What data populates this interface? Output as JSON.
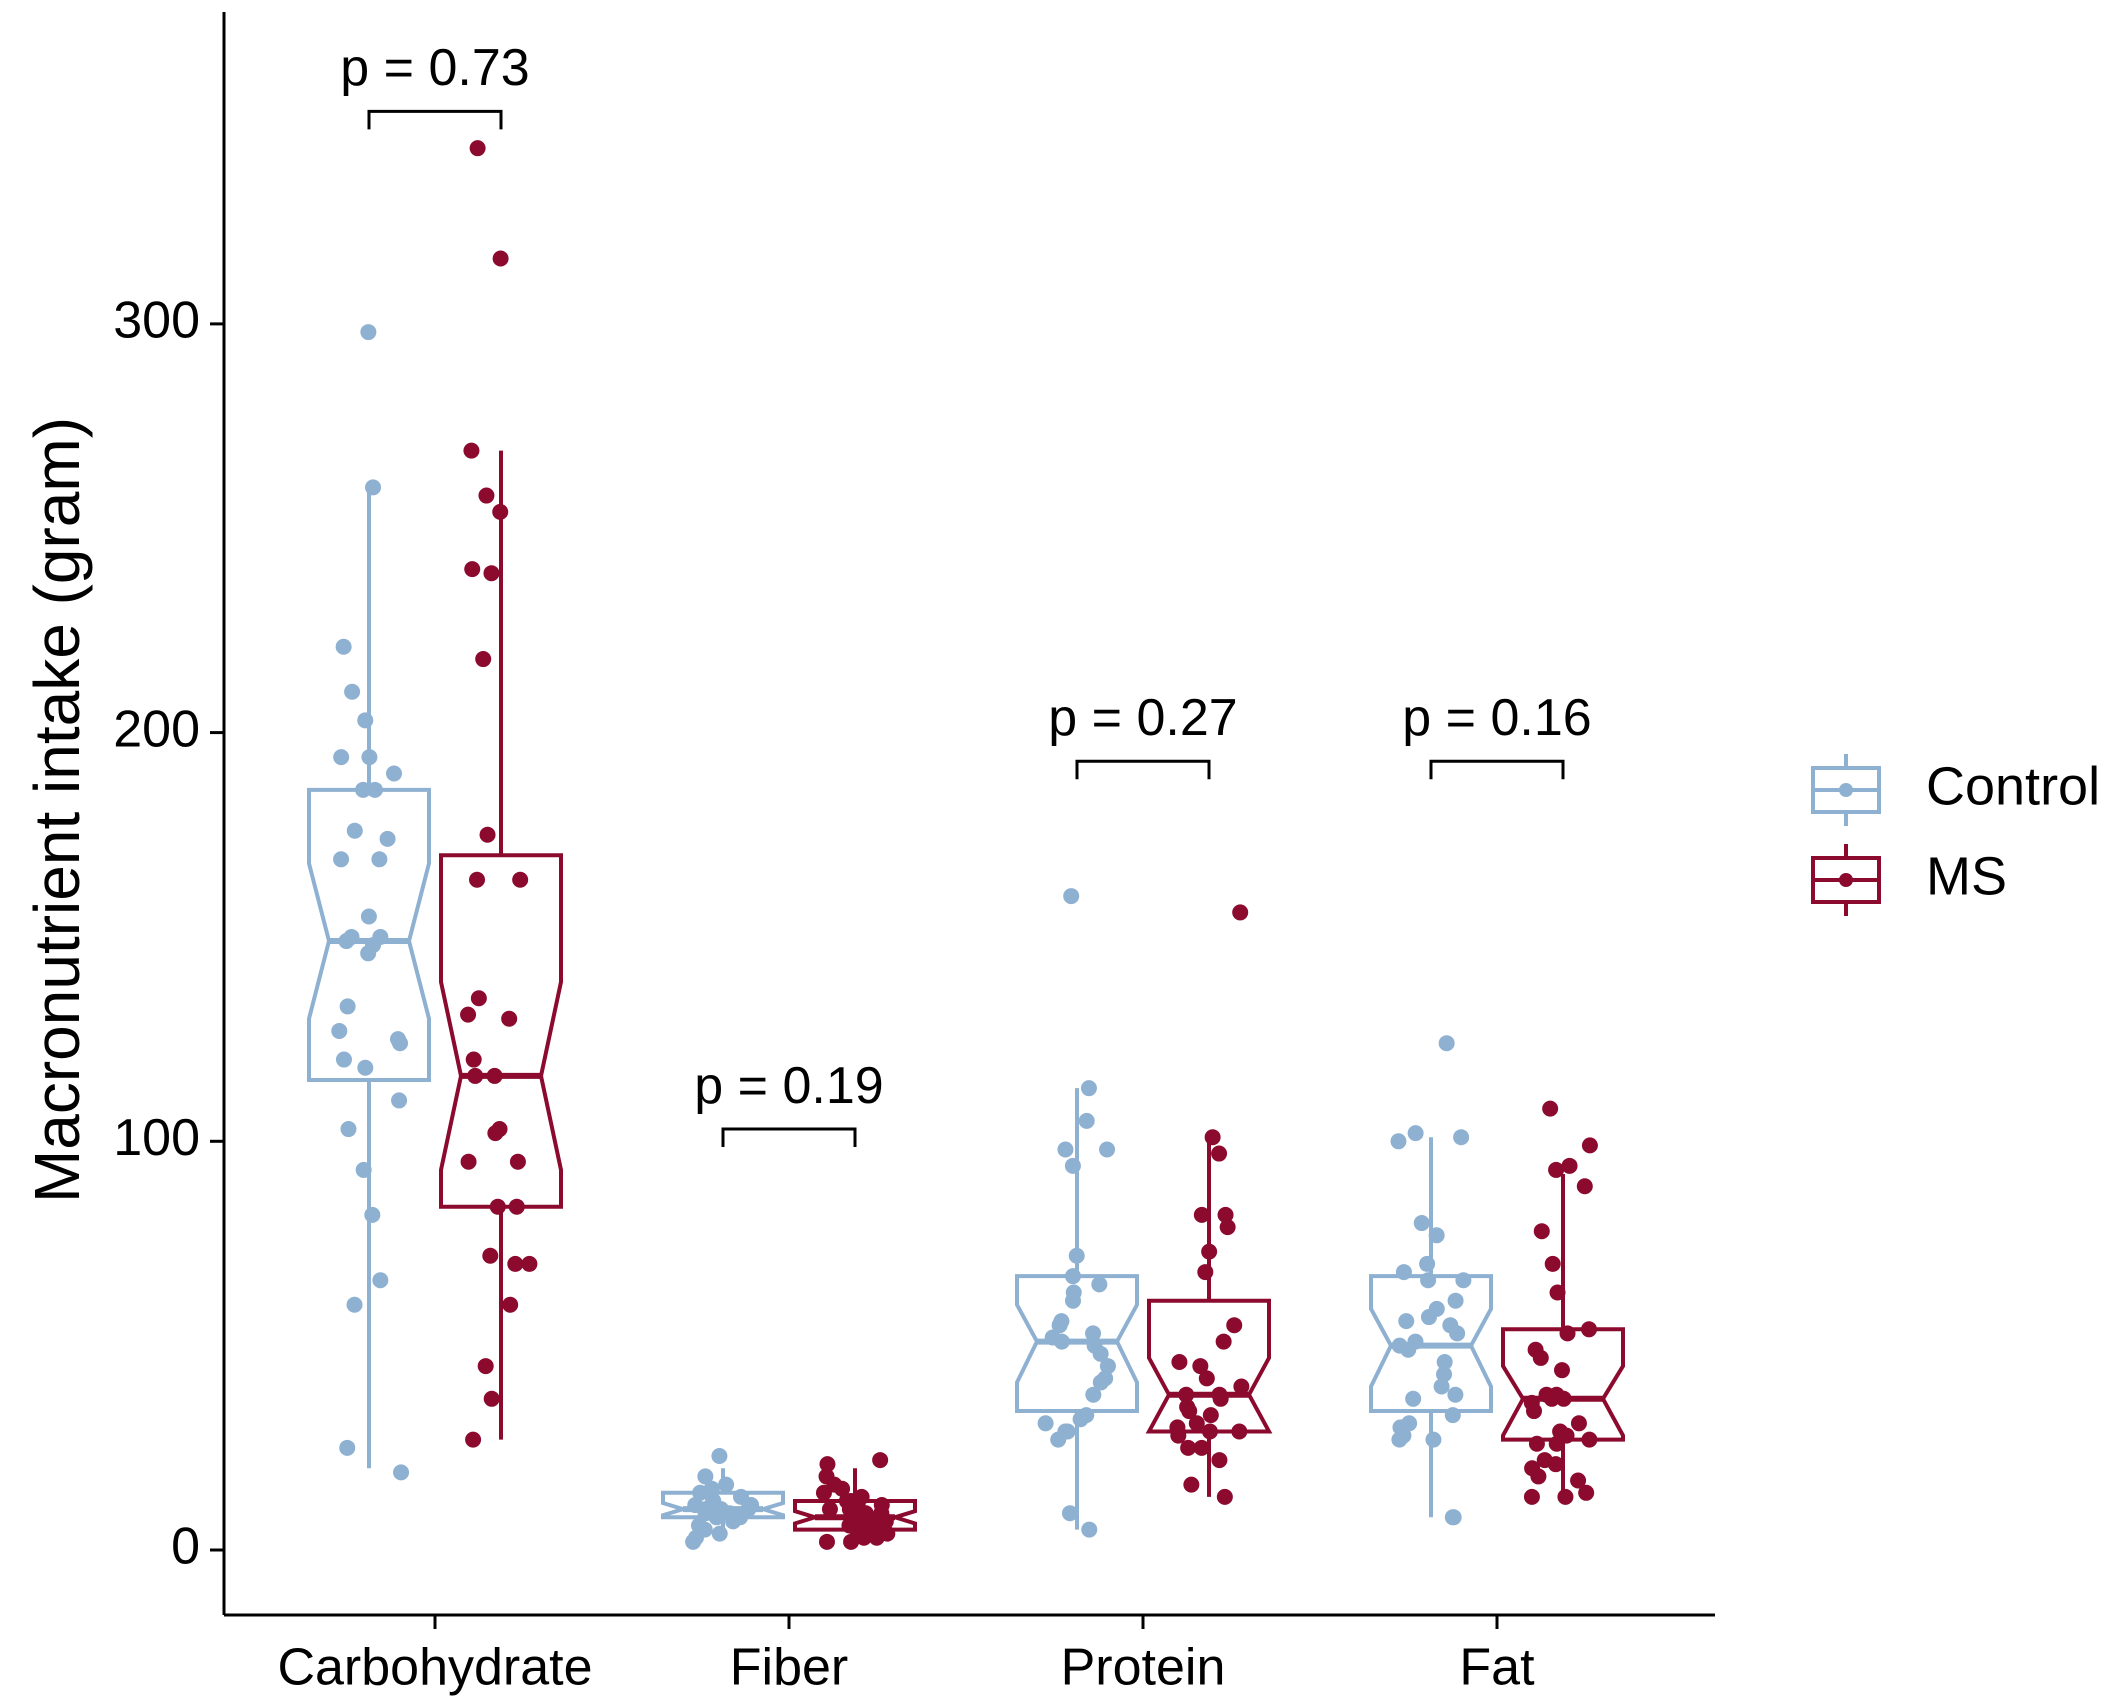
{
  "chart_data": {
    "type": "box",
    "notched": true,
    "show_points": true,
    "ylabel": "Macronutrient intake (gram)",
    "xlabel": "",
    "categories": [
      "Carbohydrate",
      "Fiber",
      "Protein",
      "Fat"
    ],
    "y_ticks": [
      0,
      100,
      200,
      300
    ],
    "ylim": [
      -16,
      380
    ],
    "grid": false,
    "legend_position": "right",
    "series": [
      {
        "name": "Control",
        "color": "#8eb0d1",
        "boxes": [
          {
            "category": "Carbohydrate",
            "whisker_low": 20,
            "q1": 115,
            "median": 149,
            "q3": 186,
            "whisker_high": 260,
            "notch_low": 130,
            "notch_high": 168
          },
          {
            "category": "Fiber",
            "whisker_low": 4,
            "q1": 8,
            "median": 10,
            "q3": 14,
            "whisker_high": 20,
            "notch_low": 8.5,
            "notch_high": 11.5
          },
          {
            "category": "Protein",
            "whisker_low": 5,
            "q1": 34,
            "median": 51,
            "q3": 67,
            "whisker_high": 113,
            "notch_low": 41,
            "notch_high": 60
          },
          {
            "category": "Fat",
            "whisker_low": 8,
            "q1": 34,
            "median": 50,
            "q3": 67,
            "whisker_high": 101,
            "notch_low": 40,
            "notch_high": 59
          }
        ],
        "points": [
          {
            "category": "Carbohydrate",
            "values": [
              298,
              260,
              221,
              210,
              203,
              194,
              194,
              190,
              186,
              186,
              176,
              174,
              169,
              169,
              155,
              150,
              150,
              149,
              148,
              146,
              133,
              127,
              125,
              124,
              120,
              118,
              110,
              103,
              93,
              82,
              66,
              60,
              25,
              19
            ]
          },
          {
            "category": "Fiber",
            "values": [
              23,
              18,
              16,
              15,
              14,
              13,
              12,
              12,
              11,
              11,
              10,
              10,
              10,
              9,
              9,
              8,
              8,
              7,
              6,
              5,
              4,
              3,
              2
            ]
          },
          {
            "category": "Protein",
            "values": [
              160,
              113,
              105,
              98,
              98,
              94,
              72,
              67,
              65,
              63,
              61,
              56,
              55,
              53,
              52,
              51,
              50,
              48,
              45,
              42,
              41,
              38,
              33,
              32,
              31,
              29,
              29,
              27,
              9,
              5
            ]
          },
          {
            "category": "Fat",
            "values": [
              124,
              102,
              101,
              100,
              80,
              77,
              70,
              68,
              66,
              66,
              61,
              59,
              57,
              56,
              55,
              53,
              51,
              50,
              49,
              46,
              43,
              40,
              38,
              37,
              33,
              31,
              30,
              28,
              27,
              27,
              8,
              8
            ]
          }
        ]
      },
      {
        "name": "MS",
        "color": "#8b0a2e",
        "boxes": [
          {
            "category": "Carbohydrate",
            "whisker_low": 27,
            "q1": 84,
            "median": 116,
            "q3": 170,
            "whisker_high": 269,
            "notch_low": 93,
            "notch_high": 139
          },
          {
            "category": "Fiber",
            "whisker_low": 2,
            "q1": 5,
            "median": 8,
            "q3": 12,
            "whisker_high": 20,
            "notch_low": 6.5,
            "notch_high": 9.5
          },
          {
            "category": "Protein",
            "whisker_low": 13,
            "q1": 29,
            "median": 38,
            "q3": 61,
            "whisker_high": 101,
            "notch_low": 29,
            "notch_high": 47
          },
          {
            "category": "Fat",
            "whisker_low": 13,
            "q1": 27,
            "median": 37,
            "q3": 54,
            "whisker_high": 92,
            "notch_low": 28,
            "notch_high": 45
          }
        ],
        "points": [
          {
            "category": "Carbohydrate",
            "values": [
              343,
              316,
              269,
              258,
              254,
              240,
              239,
              218,
              175,
              164,
              164,
              135,
              131,
              130,
              120,
              116,
              116,
              103,
              102,
              95,
              95,
              84,
              84,
              72,
              70,
              70,
              60,
              45,
              37,
              27
            ]
          },
          {
            "category": "Fiber",
            "values": [
              22,
              21,
              18,
              16,
              15,
              14,
              13,
              12,
              12,
              11,
              11,
              10,
              10,
              10,
              9,
              9,
              8,
              8,
              8,
              7,
              7,
              7,
              6,
              6,
              6,
              5,
              5,
              4,
              4,
              3,
              3,
              2,
              2
            ]
          },
          {
            "category": "Protein",
            "values": [
              156,
              101,
              97,
              82,
              82,
              79,
              73,
              68,
              55,
              51,
              46,
              45,
              42,
              40,
              38,
              38,
              37,
              35,
              34,
              33,
              31,
              30,
              29,
              29,
              28,
              25,
              25,
              22,
              16,
              13
            ]
          },
          {
            "category": "Fat",
            "values": [
              108,
              99,
              94,
              93,
              89,
              78,
              70,
              63,
              54,
              53,
              49,
              47,
              44,
              38,
              38,
              37,
              37,
              36,
              34,
              31,
              29,
              28,
              27,
              26,
              26,
              22,
              21,
              20,
              18,
              17,
              14,
              13,
              13
            ]
          }
        ]
      }
    ],
    "annotations": [
      {
        "category": "Carbohydrate",
        "text": "p = 0.73",
        "y": 352
      },
      {
        "category": "Fiber",
        "text": "p = 0.19",
        "y": 103
      },
      {
        "category": "Protein",
        "text": "p = 0.27",
        "y": 193
      },
      {
        "category": "Fat",
        "text": "p = 0.16",
        "y": 193
      }
    ]
  }
}
